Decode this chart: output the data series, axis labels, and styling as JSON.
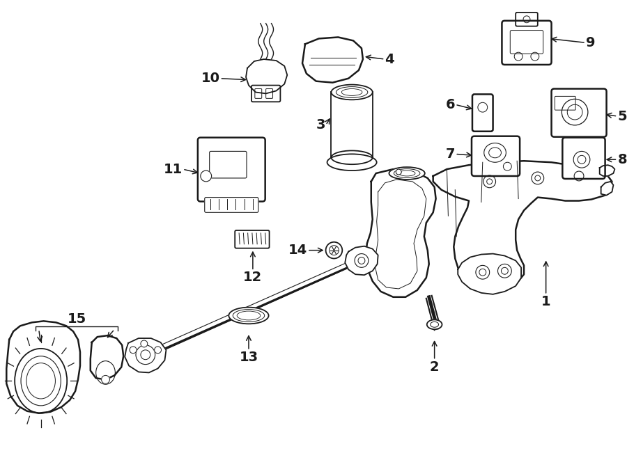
{
  "background_color": "#ffffff",
  "line_color": "#1a1a1a",
  "figure_width": 9.0,
  "figure_height": 6.61,
  "dpi": 100,
  "label_fontsize": 14,
  "arrow_fontsize": 10
}
